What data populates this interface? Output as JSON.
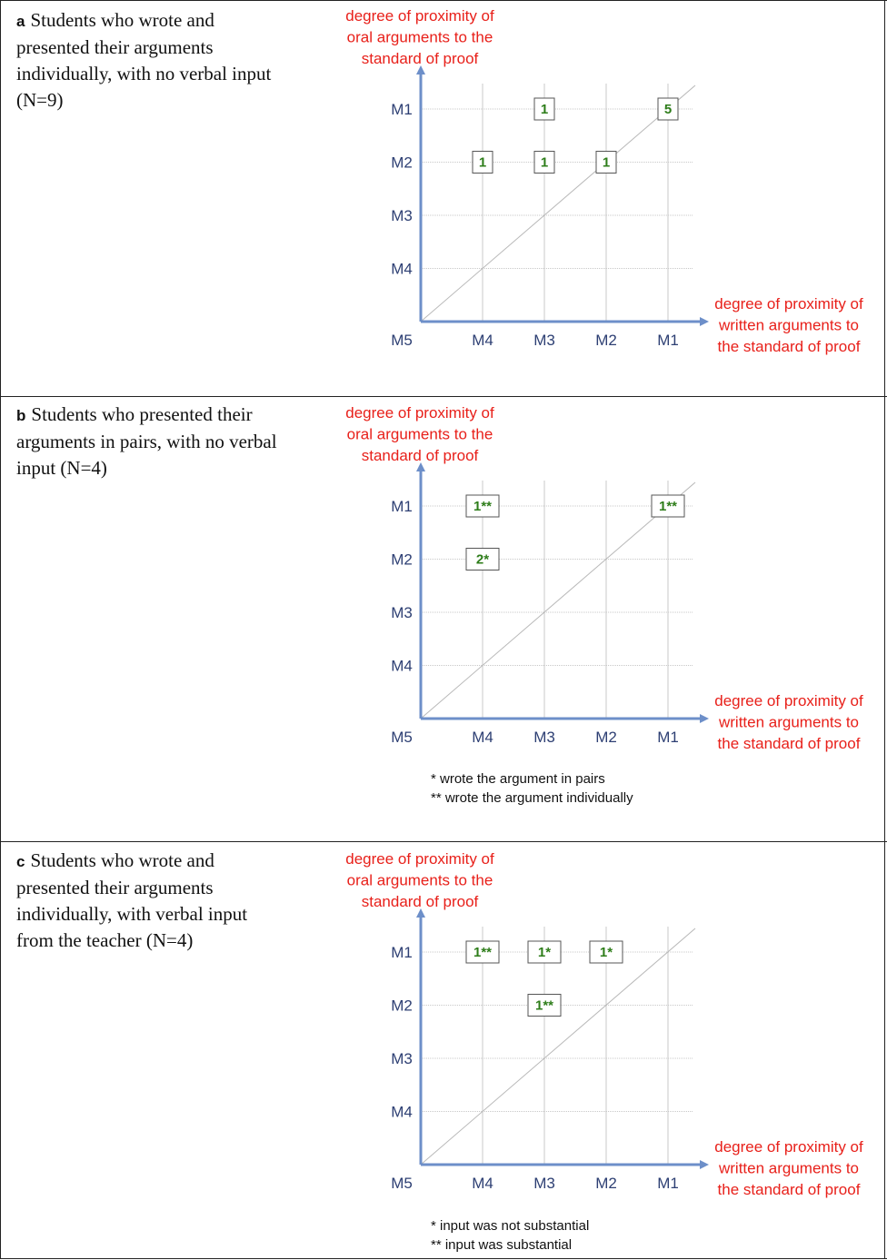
{
  "panels": [
    {
      "letter": "a",
      "description": "Students who wrote and presented their arguments individually, with no verbal input (N=9)",
      "footnotes": []
    },
    {
      "letter": "b",
      "description": "Students who presented their arguments in pairs, with no verbal input (N=4)",
      "footnotes": [
        "* wrote the argument in pairs",
        "** wrote the argument individually"
      ]
    },
    {
      "letter": "c",
      "description": "Students who wrote and presented their arguments individually, with verbal input from the teacher (N=4)",
      "footnotes": [
        "* input was not substantial",
        "** input was substantial"
      ]
    }
  ],
  "colors": {
    "axis": "#6d8fc9",
    "axis_label": "#e8201a",
    "tick_label": "#2d3f73",
    "value_text": "#2e7d1a",
    "grid": "#c8c8c8",
    "diagonal": "#b9b9b9"
  },
  "chart_data": [
    {
      "type": "scatter",
      "ylabel_lines": [
        "degree of proximity of",
        "oral arguments to the",
        "standard of proof"
      ],
      "xlabel_lines": [
        "degree of proximity of",
        "written arguments to",
        "the standard of proof"
      ],
      "x_ticks": [
        "M4",
        "M3",
        "M2",
        "M1"
      ],
      "y_ticks": [
        "M1",
        "M2",
        "M3",
        "M4"
      ],
      "origin_label": "M5",
      "diagonal": true,
      "grid": true,
      "points": [
        {
          "x": "M3",
          "y": "M1",
          "label": "1"
        },
        {
          "x": "M1",
          "y": "M1",
          "label": "5"
        },
        {
          "x": "M4",
          "y": "M2",
          "label": "1"
        },
        {
          "x": "M3",
          "y": "M2",
          "label": "1"
        },
        {
          "x": "M2",
          "y": "M2",
          "label": "1"
        }
      ]
    },
    {
      "type": "scatter",
      "ylabel_lines": [
        "degree of proximity of",
        "oral arguments to the",
        "standard of proof"
      ],
      "xlabel_lines": [
        "degree of proximity of",
        "written arguments to",
        "the standard of proof"
      ],
      "x_ticks": [
        "M4",
        "M3",
        "M2",
        "M1"
      ],
      "y_ticks": [
        "M1",
        "M2",
        "M3",
        "M4"
      ],
      "origin_label": "M5",
      "diagonal": true,
      "grid": true,
      "points": [
        {
          "x": "M4",
          "y": "M1",
          "label": "1**"
        },
        {
          "x": "M1",
          "y": "M1",
          "label": "1**"
        },
        {
          "x": "M4",
          "y": "M2",
          "label": "2*"
        }
      ]
    },
    {
      "type": "scatter",
      "ylabel_lines": [
        "degree of proximity of",
        "oral arguments to the",
        "standard of proof"
      ],
      "xlabel_lines": [
        "degree of proximity of",
        "written arguments to",
        "the standard of proof"
      ],
      "x_ticks": [
        "M4",
        "M3",
        "M2",
        "M1"
      ],
      "y_ticks": [
        "M1",
        "M2",
        "M3",
        "M4"
      ],
      "origin_label": "M5",
      "diagonal": true,
      "grid": true,
      "points": [
        {
          "x": "M4",
          "y": "M1",
          "label": "1**"
        },
        {
          "x": "M3",
          "y": "M1",
          "label": "1*"
        },
        {
          "x": "M2",
          "y": "M1",
          "label": "1*"
        },
        {
          "x": "M3",
          "y": "M2",
          "label": "1**"
        }
      ]
    }
  ]
}
